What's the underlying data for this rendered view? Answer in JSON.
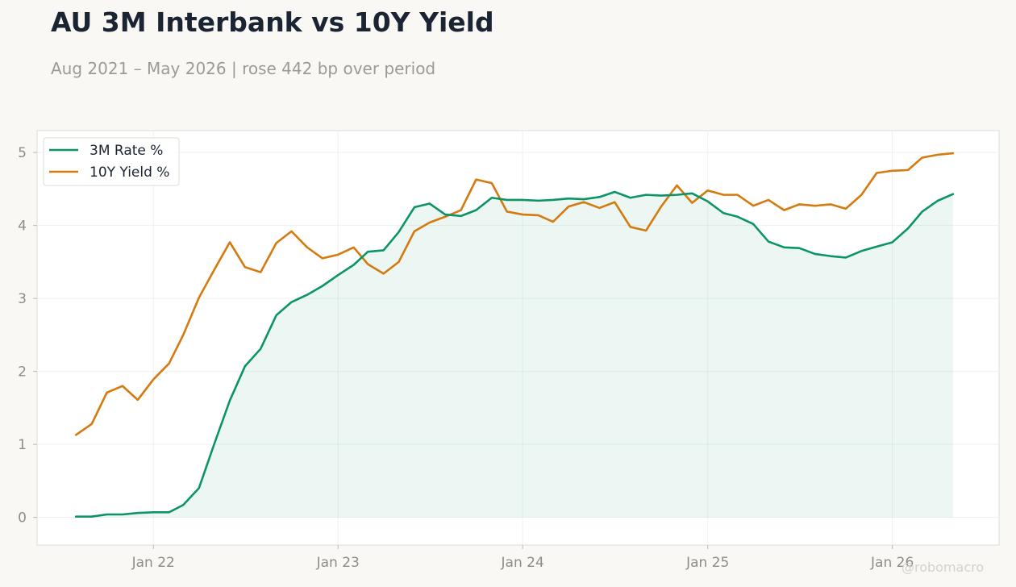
{
  "title": "AU 3M Interbank vs 10Y Yield",
  "subtitle": "Aug 2021 – May 2026 | rose 442 bp over period",
  "watermark": "@robomacro",
  "chart_data": {
    "type": "line",
    "title": "AU 3M Interbank vs 10Y Yield",
    "subtitle": "Aug 2021 – May 2026 | rose 442 bp over period",
    "xlabel": "",
    "ylabel": "",
    "x": [
      "2021-08",
      "2021-09",
      "2021-10",
      "2021-11",
      "2021-12",
      "2022-01",
      "2022-02",
      "2022-03",
      "2022-04",
      "2022-05",
      "2022-06",
      "2022-07",
      "2022-08",
      "2022-09",
      "2022-10",
      "2022-11",
      "2022-12",
      "2023-01",
      "2023-02",
      "2023-03",
      "2023-04",
      "2023-05",
      "2023-06",
      "2023-07",
      "2023-08",
      "2023-09",
      "2023-10",
      "2023-11",
      "2023-12",
      "2024-01",
      "2024-02",
      "2024-03",
      "2024-04",
      "2024-05",
      "2024-06",
      "2024-07",
      "2024-08",
      "2024-09",
      "2024-10",
      "2024-11",
      "2024-12",
      "2025-01",
      "2025-02",
      "2025-03",
      "2025-04",
      "2025-05",
      "2025-06",
      "2025-07",
      "2025-08",
      "2025-09",
      "2025-10",
      "2025-11",
      "2025-12",
      "2026-01",
      "2026-02",
      "2026-03",
      "2026-04",
      "2026-05"
    ],
    "x_ticks": [
      {
        "date": "2022-01",
        "label": "Jan 22"
      },
      {
        "date": "2023-01",
        "label": "Jan 23"
      },
      {
        "date": "2024-01",
        "label": "Jan 24"
      },
      {
        "date": "2025-01",
        "label": "Jan 25"
      },
      {
        "date": "2026-01",
        "label": "Jan 26"
      }
    ],
    "y_ticks": [
      0,
      1,
      2,
      3,
      4,
      5
    ],
    "ylim": [
      -0.38,
      5.3
    ],
    "xlim": [
      "2021-05-16",
      "2026-07-31"
    ],
    "grid": true,
    "legend_position": "top-left",
    "series": [
      {
        "name": "3M Rate %",
        "color": "#0c9467",
        "fill": true,
        "values": [
          0.01,
          0.01,
          0.04,
          0.04,
          0.06,
          0.07,
          0.07,
          0.17,
          0.4,
          1.0,
          1.6,
          2.07,
          2.31,
          2.77,
          2.95,
          3.05,
          3.17,
          3.32,
          3.46,
          3.64,
          3.66,
          3.91,
          4.25,
          4.3,
          4.15,
          4.13,
          4.21,
          4.38,
          4.35,
          4.35,
          4.34,
          4.35,
          4.37,
          4.36,
          4.39,
          4.46,
          4.38,
          4.42,
          4.41,
          4.42,
          4.44,
          4.33,
          4.17,
          4.12,
          4.02,
          3.78,
          3.7,
          3.69,
          3.61,
          3.58,
          3.56,
          3.65,
          3.71,
          3.77,
          3.96,
          4.19,
          4.34,
          4.43
        ]
      },
      {
        "name": "10Y Yield %",
        "color": "#d47a0f",
        "fill": false,
        "values": [
          1.13,
          1.28,
          1.71,
          1.8,
          1.61,
          1.89,
          2.11,
          2.5,
          3.01,
          3.39,
          3.77,
          3.43,
          3.36,
          3.76,
          3.92,
          3.7,
          3.55,
          3.6,
          3.7,
          3.47,
          3.34,
          3.5,
          3.92,
          4.04,
          4.12,
          4.21,
          4.63,
          4.58,
          4.19,
          4.15,
          4.14,
          4.05,
          4.26,
          4.32,
          4.24,
          4.32,
          3.98,
          3.93,
          4.26,
          4.55,
          4.31,
          4.48,
          4.42,
          4.42,
          4.27,
          4.35,
          4.21,
          4.29,
          4.27,
          4.29,
          4.23,
          4.42,
          4.72,
          4.75,
          4.76,
          4.93,
          4.97,
          4.99
        ]
      }
    ]
  }
}
